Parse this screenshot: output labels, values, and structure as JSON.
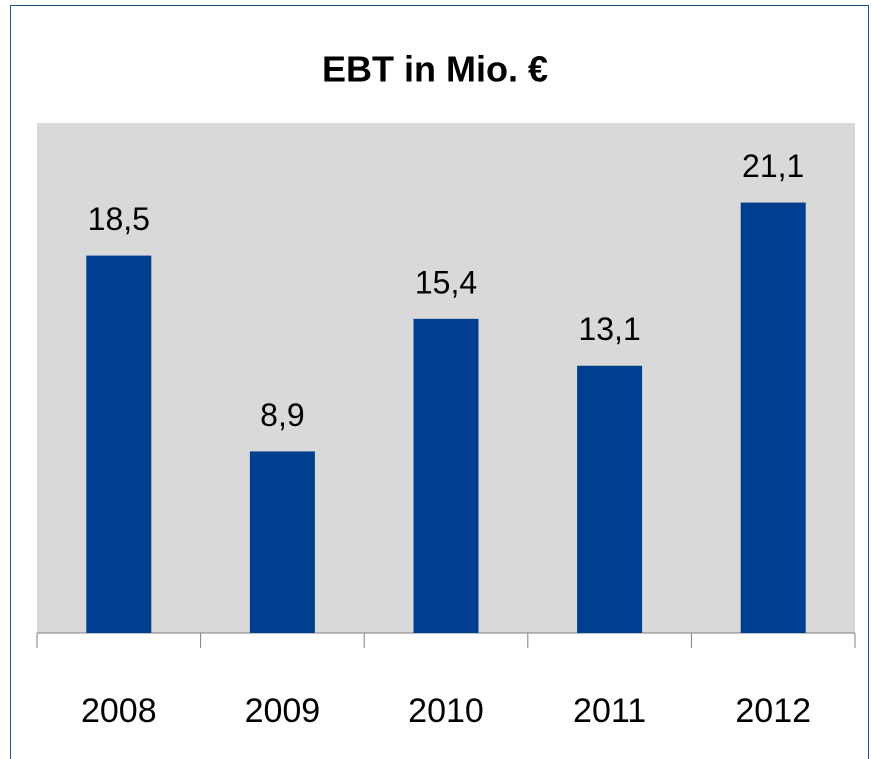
{
  "chart_data": {
    "type": "bar",
    "title": "EBT in Mio. €",
    "categories": [
      "2008",
      "2009",
      "2010",
      "2011",
      "2012"
    ],
    "values": [
      18.5,
      8.9,
      15.4,
      13.1,
      21.1
    ],
    "value_labels": [
      "18,5",
      "8,9",
      "15,4",
      "13,1",
      "21,1"
    ],
    "color": "#003f8f",
    "ylim": [
      0,
      25
    ]
  }
}
